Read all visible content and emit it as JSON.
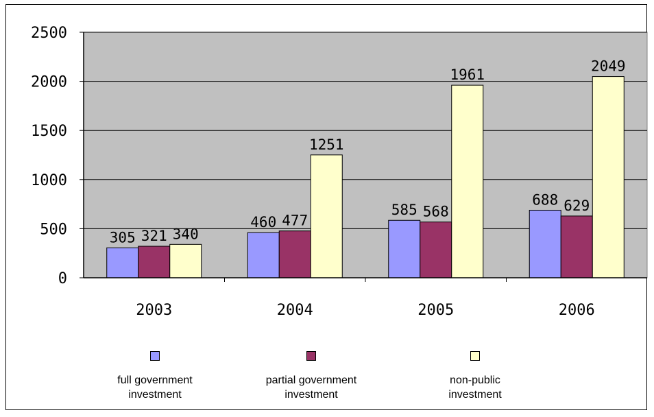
{
  "chart_data": {
    "type": "bar",
    "categories": [
      "2003",
      "2004",
      "2005",
      "2006"
    ],
    "series": [
      {
        "name": "full government investment",
        "values": [
          305,
          460,
          585,
          688
        ],
        "color": "#9999ff"
      },
      {
        "name": "partial government investment",
        "values": [
          321,
          477,
          568,
          629
        ],
        "color": "#993366"
      },
      {
        "name": "non-public investment",
        "values": [
          340,
          1251,
          1961,
          2049
        ],
        "color": "#ffffcc"
      }
    ],
    "y_ticks": [
      "0",
      "500",
      "1000",
      "1500",
      "2000",
      "2500"
    ],
    "ylim": [
      0,
      2500
    ],
    "grid": true,
    "plot_background": "#c0c0c0",
    "legend_position": "bottom",
    "data_labels": true
  },
  "legend": {
    "items": [
      {
        "line1": "full government",
        "line2": "investment"
      },
      {
        "line1": "partial government",
        "line2": "investment"
      },
      {
        "line1": "non-public",
        "line2": "investment"
      }
    ]
  }
}
